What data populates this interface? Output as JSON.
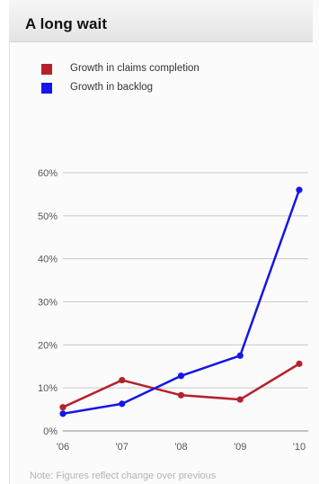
{
  "header": {
    "title": "A long wait"
  },
  "note": "Note: Figures reflect change over previous",
  "colors": {
    "claims": "#b5212b",
    "backlog": "#1515e8",
    "grid": "#c9c9c9",
    "axis": "#8a8a8a"
  },
  "chart_data": {
    "type": "line",
    "title": "A long wait",
    "x": [
      "'06",
      "'07",
      "'08",
      "'09",
      "'10"
    ],
    "yticks": [
      "0%",
      "10%",
      "20%",
      "30%",
      "40%",
      "50%",
      "60%"
    ],
    "ylim": [
      0,
      60
    ],
    "grid": true,
    "legend_position": "top-left",
    "series": [
      {
        "name": "Growth in claims completion",
        "color": "#b5212b",
        "values": [
          5.5,
          11.8,
          8.3,
          7.3,
          15.6
        ]
      },
      {
        "name": "Growth in backlog",
        "color": "#1515e8",
        "values": [
          4.0,
          6.3,
          12.8,
          17.5,
          56.0
        ]
      }
    ]
  }
}
